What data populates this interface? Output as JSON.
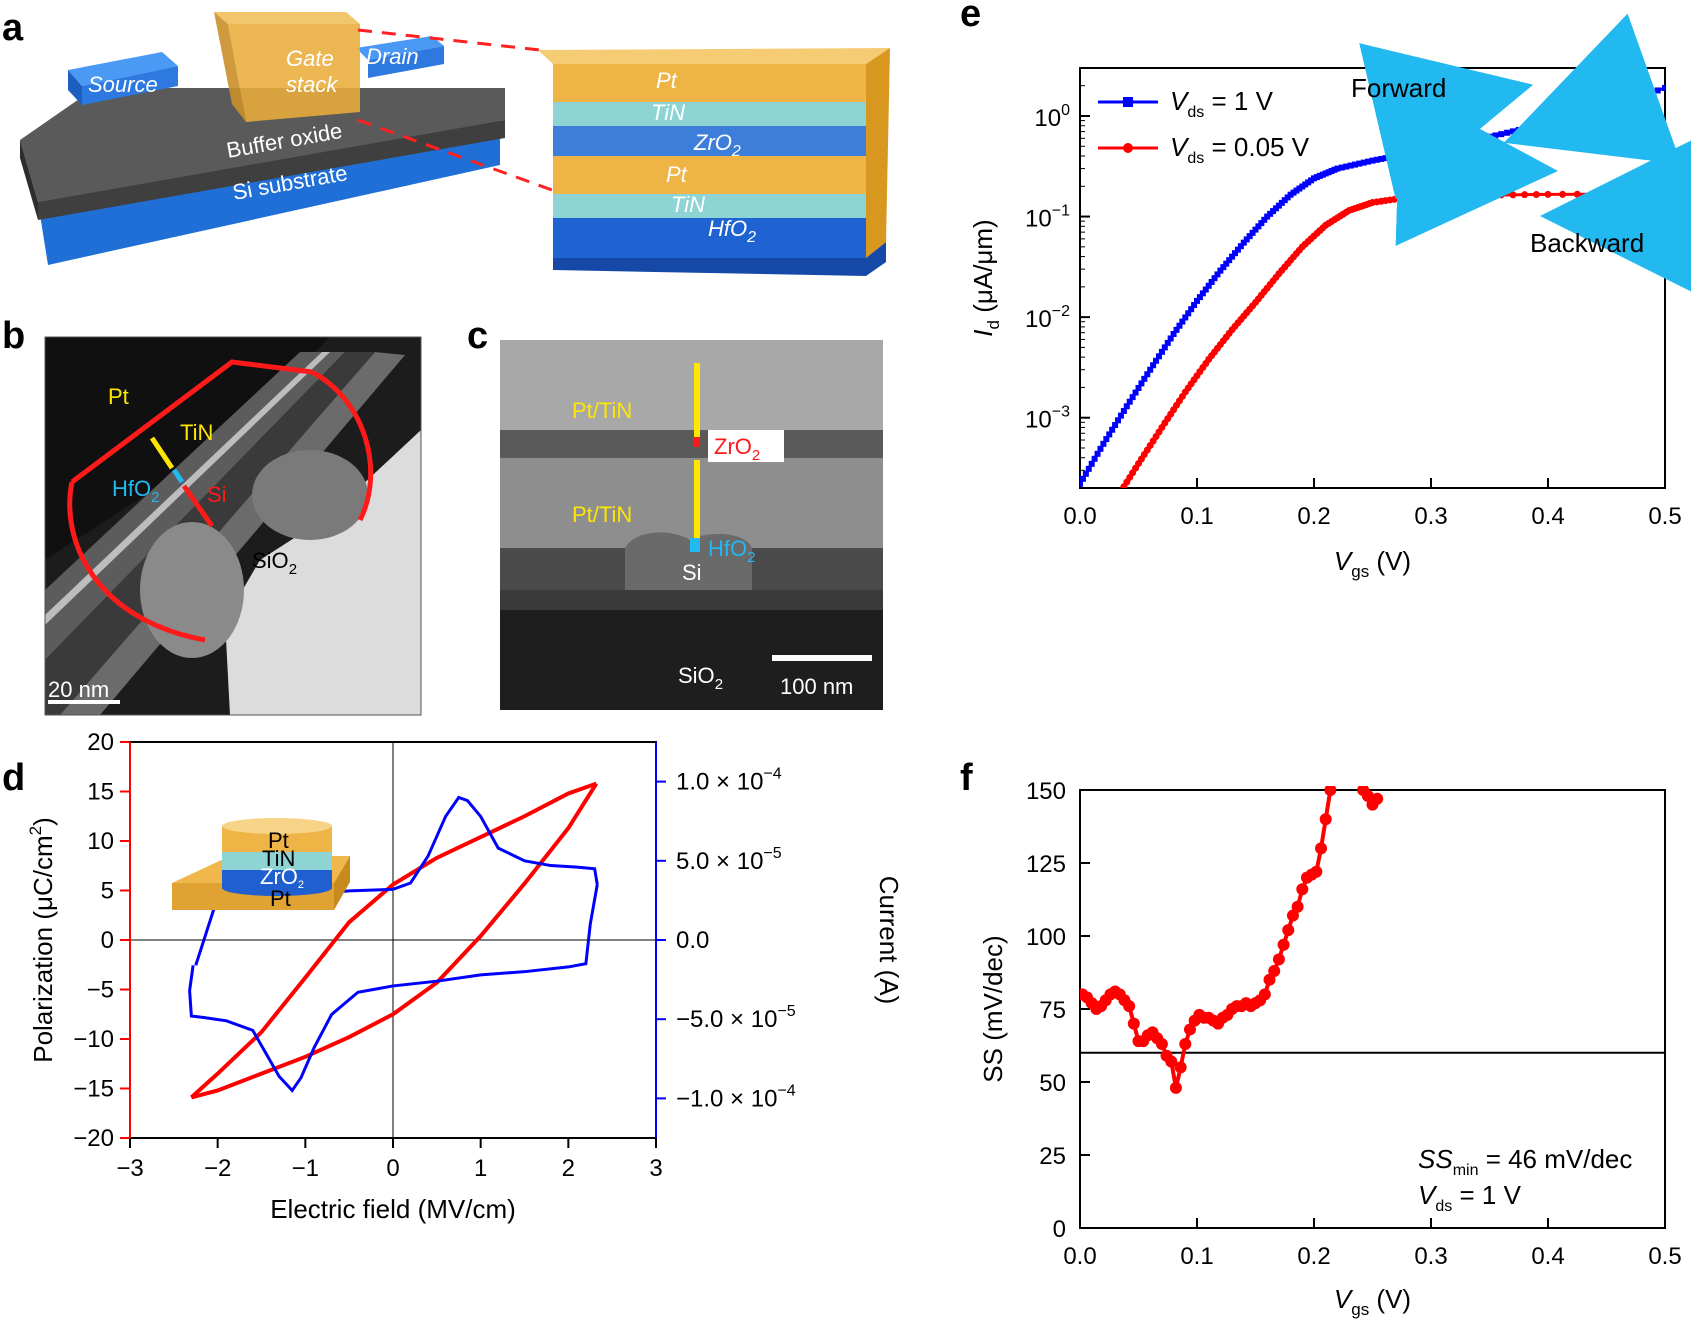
{
  "panels": {
    "a": "a",
    "b": "b",
    "c": "c",
    "d": "d",
    "e": "e",
    "f": "f"
  },
  "panel_a": {
    "labels": [
      "Source",
      "Gate",
      "stack",
      "Drain",
      "Buffer oxide",
      "Si substrate"
    ],
    "stack_layers": [
      "Pt",
      "TiN",
      "ZrO",
      "Pt",
      "TiN",
      "HfO"
    ],
    "sub2": "2"
  },
  "panel_b": {
    "labels": {
      "pt": "Pt",
      "tin": "TiN",
      "hfo": "HfO",
      "si": "Si",
      "sio": "SiO"
    },
    "scalebar": "20 nm"
  },
  "panel_c": {
    "labels": {
      "pttin1": "Pt/TiN",
      "zro": "ZrO",
      "pttin2": "Pt/TiN",
      "hfo": "HfO",
      "si": "Si",
      "sio": "SiO"
    },
    "scalebar": "100 nm"
  },
  "panel_d_inset": [
    "Pt",
    "TiN",
    "ZrO",
    "Pt"
  ],
  "chart_data": [
    {
      "panel": "d",
      "type": "line",
      "xlabel": "Electric field (MV/cm)",
      "ylabel_left": "Polarization (μC/cm",
      "ylabel_left_sup": "2",
      "ylabel_right": "Current (A)",
      "xlim": [
        -3,
        3
      ],
      "ylim_left": [
        -20,
        20
      ],
      "ylim_right": [
        -0.000125,
        0.000125
      ],
      "xticks": [
        "−3",
        "−2",
        "−1",
        "0",
        "1",
        "2",
        "3"
      ],
      "yticks_left": [
        "−20",
        "−15",
        "−10",
        "−5",
        "0",
        "5",
        "10",
        "15",
        "20"
      ],
      "yticks_right": [
        {
          "mant": "1.0 × 10",
          "exp": "−4",
          "v": 0.0001
        },
        {
          "mant": "5.0 × 10",
          "exp": "−5",
          "v": 5e-05
        },
        {
          "mant": "0.0",
          "exp": "",
          "v": 0
        },
        {
          "mant": "−5.0 × 10",
          "exp": "−5",
          "v": -5e-05
        },
        {
          "mant": "−1.0 × 10",
          "exp": "−4",
          "v": -0.0001
        }
      ],
      "series": [
        {
          "color": "#ff0000",
          "upper": [
            [
              -2.3,
              -15.9
            ],
            [
              -2.0,
              -13.5
            ],
            [
              -1.5,
              -9.3
            ],
            [
              -1.0,
              -3.8
            ],
            [
              -0.5,
              1.8
            ],
            [
              0.0,
              5.6
            ],
            [
              0.5,
              8.3
            ],
            [
              1.0,
              10.4
            ],
            [
              1.5,
              12.5
            ],
            [
              2.0,
              14.8
            ],
            [
              2.32,
              15.8
            ]
          ],
          "lower": [
            [
              2.32,
              15.8
            ],
            [
              2.0,
              11.3
            ],
            [
              1.5,
              5.7
            ],
            [
              1.0,
              0.4
            ],
            [
              0.5,
              -4.3
            ],
            [
              0.0,
              -7.5
            ],
            [
              -0.5,
              -9.8
            ],
            [
              -1.0,
              -11.8
            ],
            [
              -1.5,
              -13.5
            ],
            [
              -2.0,
              -15.2
            ],
            [
              -2.3,
              -15.9
            ]
          ]
        },
        {
          "color": "#0000ff",
          "forward": [
            [
              -2.25,
              -1.6e-05
            ],
            [
              -2.0,
              2.7e-05
            ],
            [
              -1.5,
              2.8e-05
            ],
            [
              -1.0,
              2.9e-05
            ],
            [
              -0.5,
              3.1e-05
            ],
            [
              0.0,
              3.2e-05
            ],
            [
              0.2,
              3.6e-05
            ],
            [
              0.4,
              5.3e-05
            ],
            [
              0.6,
              7.8e-05
            ],
            [
              0.75,
              9e-05
            ],
            [
              0.85,
              8.8e-05
            ],
            [
              1.0,
              7.8e-05
            ],
            [
              1.2,
              5.8e-05
            ],
            [
              1.5,
              5e-05
            ],
            [
              1.8,
              4.7e-05
            ],
            [
              2.1,
              4.6e-05
            ],
            [
              2.3,
              4.5e-05
            ],
            [
              2.33,
              3.5e-05
            ]
          ],
          "backward": [
            [
              2.33,
              3.5e-05
            ],
            [
              2.25,
              1e-05
            ],
            [
              2.2,
              -1.5e-05
            ],
            [
              2.0,
              -1.7e-05
            ],
            [
              1.5,
              -2e-05
            ],
            [
              1.0,
              -2.2e-05
            ],
            [
              0.5,
              -2.6e-05
            ],
            [
              0.0,
              -2.9e-05
            ],
            [
              -0.4,
              -3.3e-05
            ],
            [
              -0.7,
              -4.7e-05
            ],
            [
              -0.9,
              -6.8e-05
            ],
            [
              -1.05,
              -8.7e-05
            ],
            [
              -1.15,
              -9.5e-05
            ],
            [
              -1.3,
              -8.6e-05
            ],
            [
              -1.6,
              -5.7e-05
            ],
            [
              -1.9,
              -5.1e-05
            ],
            [
              -2.15,
              -4.9e-05
            ],
            [
              -2.3,
              -4.8e-05
            ],
            [
              -2.32,
              -3.2e-05
            ],
            [
              -2.28,
              -1.6e-05
            ]
          ]
        }
      ]
    },
    {
      "panel": "e",
      "type": "line",
      "xlabel_main": "V",
      "xlabel_sub": "gs",
      "xlabel_unit": " (V)",
      "ylabel_main": "I",
      "ylabel_sub": "d",
      "ylabel_unit": " (μA/μm)",
      "xlim": [
        0,
        0.5
      ],
      "ylim_log": [
        0.0002,
        3
      ],
      "xticks": [
        "0.0",
        "0.1",
        "0.2",
        "0.3",
        "0.4",
        "0.5"
      ],
      "yticks": [
        {
          "base": "10",
          "exp": "0",
          "v": 1
        },
        {
          "base": "10",
          "exp": "−1",
          "v": 0.1
        },
        {
          "base": "10",
          "exp": "−2",
          "v": 0.01
        },
        {
          "base": "10",
          "exp": "−3",
          "v": 0.001
        }
      ],
      "legend": [
        {
          "main": "V",
          "sub": "ds",
          "rest": " = 1 V",
          "color": "#0000ff"
        },
        {
          "main": "V",
          "sub": "ds",
          "rest": " = 0.05 V",
          "color": "#ff0000"
        }
      ],
      "annotations": {
        "forward": "Forward",
        "backward": "Backward"
      },
      "series": [
        {
          "name": "Vds = 1 V",
          "color": "#0000ff",
          "points": [
            [
              0.0,
              0.00022
            ],
            [
              0.02,
              0.00055
            ],
            [
              0.04,
              0.0013
            ],
            [
              0.06,
              0.003
            ],
            [
              0.08,
              0.0068
            ],
            [
              0.1,
              0.0145
            ],
            [
              0.12,
              0.029
            ],
            [
              0.14,
              0.055
            ],
            [
              0.16,
              0.1
            ],
            [
              0.18,
              0.165
            ],
            [
              0.2,
              0.24
            ],
            [
              0.22,
              0.3
            ],
            [
              0.25,
              0.36
            ],
            [
              0.28,
              0.42
            ],
            [
              0.32,
              0.52
            ],
            [
              0.36,
              0.66
            ],
            [
              0.4,
              0.85
            ],
            [
              0.45,
              1.2
            ],
            [
              0.5,
              1.9
            ]
          ]
        },
        {
          "name": "Vds = 0.05 V",
          "color": "#ff0000",
          "points": [
            [
              0.03,
              0.00015
            ],
            [
              0.05,
              0.00035
            ],
            [
              0.07,
              0.0008
            ],
            [
              0.09,
              0.0018
            ],
            [
              0.11,
              0.0038
            ],
            [
              0.13,
              0.0075
            ],
            [
              0.15,
              0.014
            ],
            [
              0.17,
              0.027
            ],
            [
              0.19,
              0.05
            ],
            [
              0.21,
              0.082
            ],
            [
              0.23,
              0.115
            ],
            [
              0.25,
              0.138
            ],
            [
              0.28,
              0.155
            ],
            [
              0.32,
              0.162
            ],
            [
              0.4,
              0.166
            ],
            [
              0.5,
              0.168
            ]
          ]
        }
      ]
    },
    {
      "panel": "f",
      "type": "line",
      "xlabel_main": "V",
      "xlabel_sub": "gs",
      "xlabel_unit": " (V)",
      "ylabel": "SS (mV/dec)",
      "xlim": [
        0,
        0.5
      ],
      "ylim": [
        0,
        150
      ],
      "xticks": [
        "0.0",
        "0.1",
        "0.2",
        "0.3",
        "0.4",
        "0.5"
      ],
      "yticks": [
        "0",
        "25",
        "50",
        "75",
        "100",
        "125",
        "150"
      ],
      "reference_line": 60,
      "annotation": {
        "ss_main": "SS",
        "ss_sub": "min",
        "ss_rest": " = 46 mV/dec",
        "v_main": "V",
        "v_sub": "ds",
        "v_rest": " = 1 V"
      },
      "series": [
        {
          "color": "#ff0000",
          "points": [
            [
              0.002,
              80
            ],
            [
              0.006,
              79
            ],
            [
              0.01,
              77
            ],
            [
              0.014,
              75
            ],
            [
              0.018,
              76
            ],
            [
              0.022,
              78
            ],
            [
              0.026,
              80
            ],
            [
              0.03,
              81
            ],
            [
              0.034,
              80
            ],
            [
              0.038,
              78
            ],
            [
              0.042,
              76
            ],
            [
              0.046,
              70
            ],
            [
              0.05,
              64
            ],
            [
              0.054,
              64
            ],
            [
              0.058,
              66
            ],
            [
              0.062,
              67
            ],
            [
              0.066,
              65
            ],
            [
              0.07,
              63
            ],
            [
              0.074,
              59
            ],
            [
              0.078,
              57
            ],
            [
              0.082,
              48
            ],
            [
              0.086,
              55
            ],
            [
              0.09,
              63
            ],
            [
              0.094,
              68
            ],
            [
              0.098,
              71
            ],
            [
              0.102,
              73
            ],
            [
              0.106,
              72
            ],
            [
              0.11,
              72
            ],
            [
              0.114,
              71
            ],
            [
              0.118,
              70
            ],
            [
              0.122,
              72
            ],
            [
              0.126,
              73
            ],
            [
              0.13,
              75
            ],
            [
              0.134,
              76
            ],
            [
              0.138,
              76
            ],
            [
              0.142,
              77
            ],
            [
              0.146,
              76
            ],
            [
              0.15,
              77
            ],
            [
              0.154,
              78
            ],
            [
              0.158,
              80
            ],
            [
              0.162,
              85
            ],
            [
              0.166,
              88
            ],
            [
              0.17,
              92
            ],
            [
              0.174,
              97
            ],
            [
              0.178,
              102
            ],
            [
              0.182,
              107
            ],
            [
              0.186,
              110
            ],
            [
              0.19,
              116
            ],
            [
              0.194,
              120
            ],
            [
              0.198,
              121
            ],
            [
              0.202,
              122
            ],
            [
              0.206,
              130
            ],
            [
              0.21,
              140
            ],
            [
              0.214,
              150
            ],
            [
              0.242,
              150
            ],
            [
              0.246,
              148
            ],
            [
              0.25,
              145
            ],
            [
              0.254,
              147
            ]
          ]
        }
      ]
    }
  ]
}
